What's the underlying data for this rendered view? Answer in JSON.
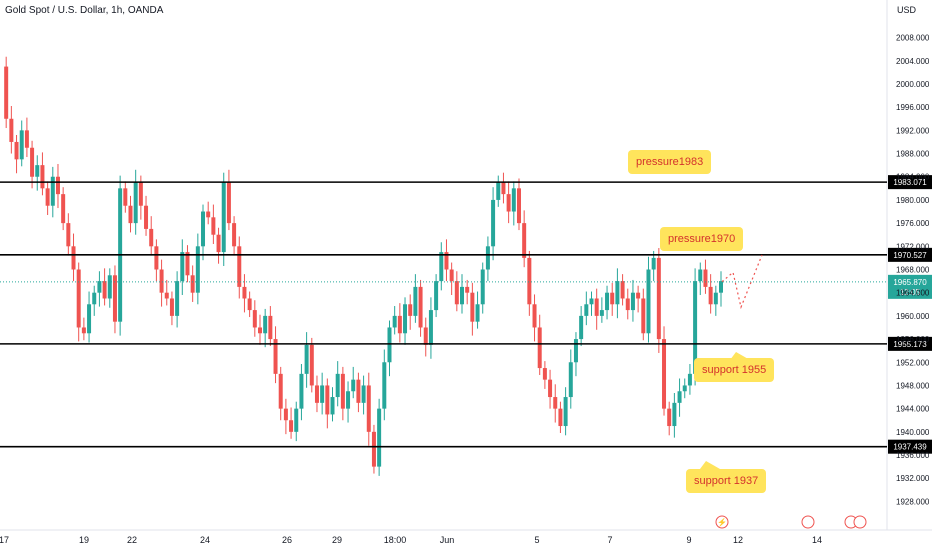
{
  "chart_data": {
    "type": "candlestick",
    "title": "Gold Spot / U.S. Dollar, 1h, OANDA",
    "currency": "USD",
    "ylim": [
      1926,
      2010
    ],
    "y_ticks": [
      "2008.000",
      "2004.000",
      "2000.000",
      "1996.000",
      "1992.000",
      "1988.000",
      "1984.000",
      "1980.000",
      "1976.000",
      "1972.000",
      "1968.000",
      "1964.000",
      "1960.000",
      "1956.000",
      "1952.000",
      "1948.000",
      "1944.000",
      "1940.000",
      "1936.000",
      "1932.000",
      "1928.000"
    ],
    "x_ticks": [
      "17",
      "19",
      "22",
      "24",
      "26",
      "29",
      "18:00",
      "Jun",
      "5",
      "7",
      "9",
      "12",
      "14"
    ],
    "horizontal_levels": [
      {
        "value": 1983.071,
        "label": "1983.071"
      },
      {
        "value": 1970.527,
        "label": "1970.527"
      },
      {
        "value": 1955.173,
        "label": "1955.173"
      },
      {
        "value": 1937.439,
        "label": "1937.439"
      }
    ],
    "current_price": {
      "value": 1965.87,
      "label": "1965.870",
      "countdown": "12:05"
    },
    "annotations": [
      {
        "text": "pressure1983",
        "near": 1983
      },
      {
        "text": "pressure1970",
        "near": 1970
      },
      {
        "text": "support 1955",
        "near": 1955
      },
      {
        "text": "support 1937",
        "near": 1937
      }
    ],
    "projected_path": [
      1965.9,
      1967.5,
      1961.5,
      1970.5
    ],
    "path": [
      2003,
      1994,
      1990,
      1987,
      1992,
      1989,
      1984,
      1986,
      1982,
      1979,
      1984,
      1981,
      1976,
      1972,
      1968,
      1958,
      1957,
      1962,
      1964,
      1966,
      1963,
      1967,
      1959,
      1982,
      1979,
      1976,
      1983,
      1979,
      1975,
      1972,
      1968,
      1964,
      1963,
      1960,
      1966,
      1971,
      1967,
      1964,
      1972,
      1978,
      1977,
      1974,
      1971,
      1983,
      1976,
      1972,
      1965,
      1963,
      1961,
      1958,
      1957,
      1960,
      1956,
      1950,
      1944,
      1942,
      1940,
      1944,
      1950,
      1955,
      1948,
      1945,
      1948,
      1943,
      1946,
      1950,
      1944,
      1947,
      1949,
      1945,
      1948,
      1940,
      1934,
      1944,
      1952,
      1958,
      1960,
      1957,
      1962,
      1960,
      1965,
      1958,
      1955,
      1961,
      1966,
      1971,
      1968,
      1966,
      1962,
      1965,
      1964,
      1959,
      1962,
      1968,
      1972,
      1980,
      1983,
      1981,
      1978,
      1982,
      1976,
      1970,
      1962,
      1958,
      1951,
      1949,
      1946,
      1944,
      1941,
      1946,
      1952,
      1956,
      1960,
      1962,
      1963,
      1960,
      1961,
      1964,
      1962,
      1966,
      1963,
      1961,
      1964,
      1963,
      1957,
      1968,
      1970,
      1956,
      1944,
      1941,
      1945,
      1947,
      1948,
      1950,
      1966,
      1968,
      1965,
      1962,
      1964,
      1966
    ]
  },
  "x_labels_text": [
    "17",
    "19",
    "22",
    "24",
    "26",
    "29",
    "18:00",
    "Jun",
    "5",
    "7",
    "9",
    "12",
    "14"
  ],
  "colors": {
    "up": "#26a69a",
    "down": "#ef5350",
    "level": "#000000",
    "label_bg": "#000000",
    "price_bg": "#26a69a",
    "annotation_bg": "#ffe45c",
    "annotation_text": "#d4322c"
  }
}
